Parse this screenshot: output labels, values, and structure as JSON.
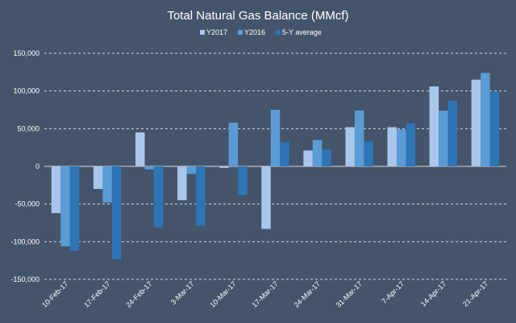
{
  "chart_data": {
    "type": "bar",
    "title": "Total Natural Gas Balance (MMcf)",
    "categories": [
      "10-Feb-17",
      "17-Feb-17",
      "24-Feb-17",
      "3-Mar-17",
      "10-Mar-17",
      "17-Mar-17",
      "24-Mar-17",
      "31-Mar-17",
      "7-Apr-17",
      "14-Apr-17",
      "21-Apr-17"
    ],
    "series": [
      {
        "name": "Y2017",
        "color": "#a9c6ea",
        "values": [
          -62000,
          -30000,
          45000,
          -45000,
          -2000,
          -83000,
          21000,
          52000,
          52000,
          106000,
          115000
        ]
      },
      {
        "name": "Y2016",
        "color": "#5b9bd5",
        "values": [
          -106000,
          -48000,
          -4000,
          -10000,
          58000,
          75000,
          35000,
          74000,
          49000,
          74000,
          124000
        ]
      },
      {
        "name": "5-Y average",
        "color": "#2e75b6",
        "values": [
          -112000,
          -123000,
          -81000,
          -79000,
          -38000,
          32000,
          22000,
          33000,
          57000,
          87000,
          99000
        ]
      }
    ],
    "yticks": [
      "150,000",
      "100,000",
      "50,000",
      "0",
      "-50,000",
      "-100,000",
      "-150,000"
    ],
    "ylim": [
      -150000,
      150000
    ],
    "grid": true,
    "legend_position": "top-right",
    "background": "#44546a"
  }
}
